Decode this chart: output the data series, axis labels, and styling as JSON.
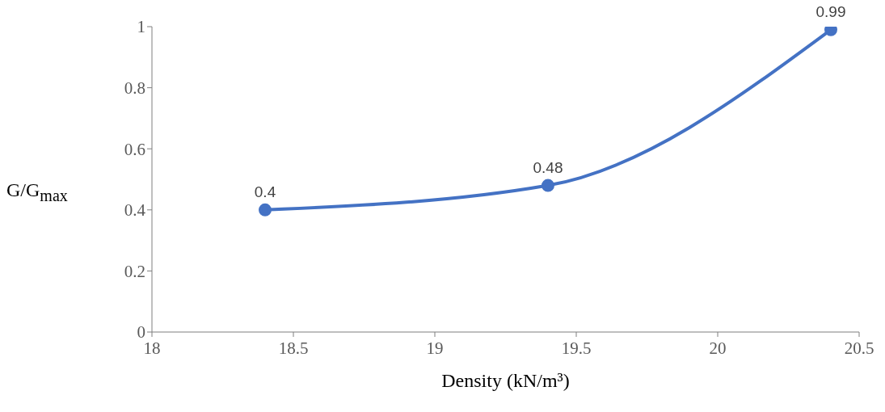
{
  "chart_data": {
    "type": "line",
    "xlabel": "Density (kN/m³)",
    "ylabel": "G/G$_{max}$",
    "x": [
      18.4,
      19.4,
      20.4
    ],
    "series": [
      {
        "color": "#4472c4",
        "values": [
          0.4,
          0.48,
          0.99
        ]
      }
    ],
    "xlim": [
      18,
      20.5
    ],
    "xticks": [
      18,
      18.5,
      19,
      19.5,
      20,
      20.5
    ],
    "ylim": [
      0,
      1
    ],
    "yticks": [
      0,
      0.2,
      0.4,
      0.6,
      0.8,
      1
    ],
    "grid": false,
    "marker": "circle",
    "line_style": "solid",
    "data_labels": true
  }
}
